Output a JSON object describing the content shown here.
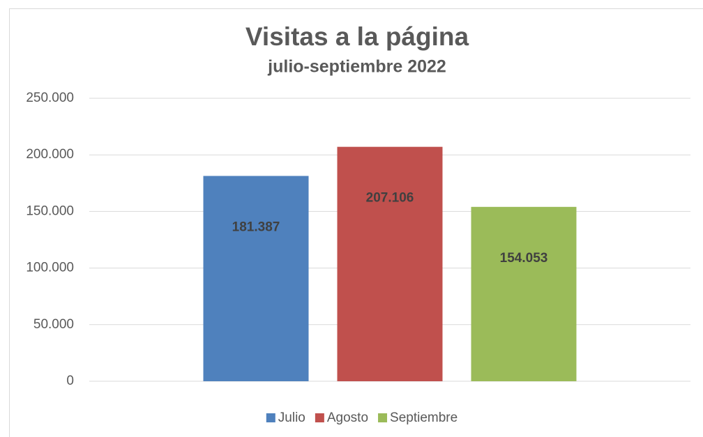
{
  "chart_data": {
    "type": "bar",
    "title": "Visitas a la página",
    "subtitle": "julio-septiembre 2022",
    "categories": [
      null
    ],
    "series": [
      {
        "name": "Julio",
        "color": "#4f81bd",
        "values": [
          181387
        ],
        "value_labels": [
          "181.387"
        ]
      },
      {
        "name": "Agosto",
        "color": "#c0504d",
        "values": [
          207106
        ],
        "value_labels": [
          "207.106"
        ]
      },
      {
        "name": "Septiembre",
        "color": "#9bbb59",
        "values": [
          154053
        ],
        "value_labels": [
          "154.053"
        ]
      }
    ],
    "ylim": [
      0,
      250000
    ],
    "yticks": [
      0,
      {
        "value": 50000,
        "label": "50.000"
      },
      {
        "value": 100000,
        "label": "100.000"
      },
      {
        "value": 150000,
        "label": "150.000"
      },
      {
        "value": 200000,
        "label": "200.000"
      },
      {
        "value": 250000,
        "label": "250.000"
      }
    ],
    "grid": true,
    "legend": "bottom"
  }
}
